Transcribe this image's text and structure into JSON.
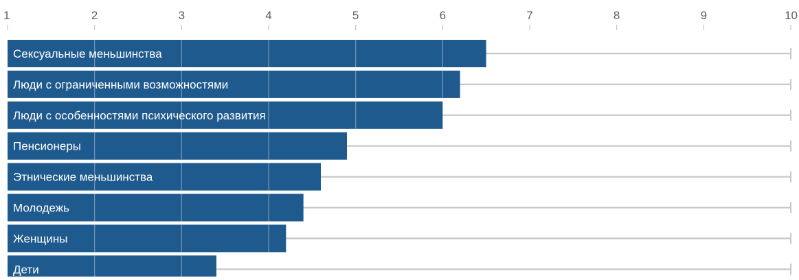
{
  "chart_data": {
    "type": "bar",
    "orientation": "horizontal",
    "categories": [
      "Сексуальные меньшинства",
      "Люди с ограниченными возможностями",
      "Люди с особенностями психического развития",
      "Пенсионеры",
      "Этнические меньшинства",
      "Молодежь",
      "Женщины",
      "Дети"
    ],
    "values": [
      6.5,
      6.2,
      6.0,
      4.9,
      4.6,
      4.4,
      4.2,
      3.4
    ],
    "xlim": [
      1,
      10
    ],
    "xticks": [
      "1",
      "2",
      "3",
      "4",
      "5",
      "6",
      "7",
      "8",
      "9",
      "10"
    ],
    "axis_position": "top",
    "grid": true,
    "legend": "none",
    "title": "",
    "xlabel": "",
    "ylabel": ""
  },
  "colors": {
    "bar": "#1f5a8e",
    "track": "#c7c7c7",
    "tick_text": "#5f5f5f",
    "gridline_on_bar": "#6f93b8",
    "label_text": "#ffffff"
  }
}
